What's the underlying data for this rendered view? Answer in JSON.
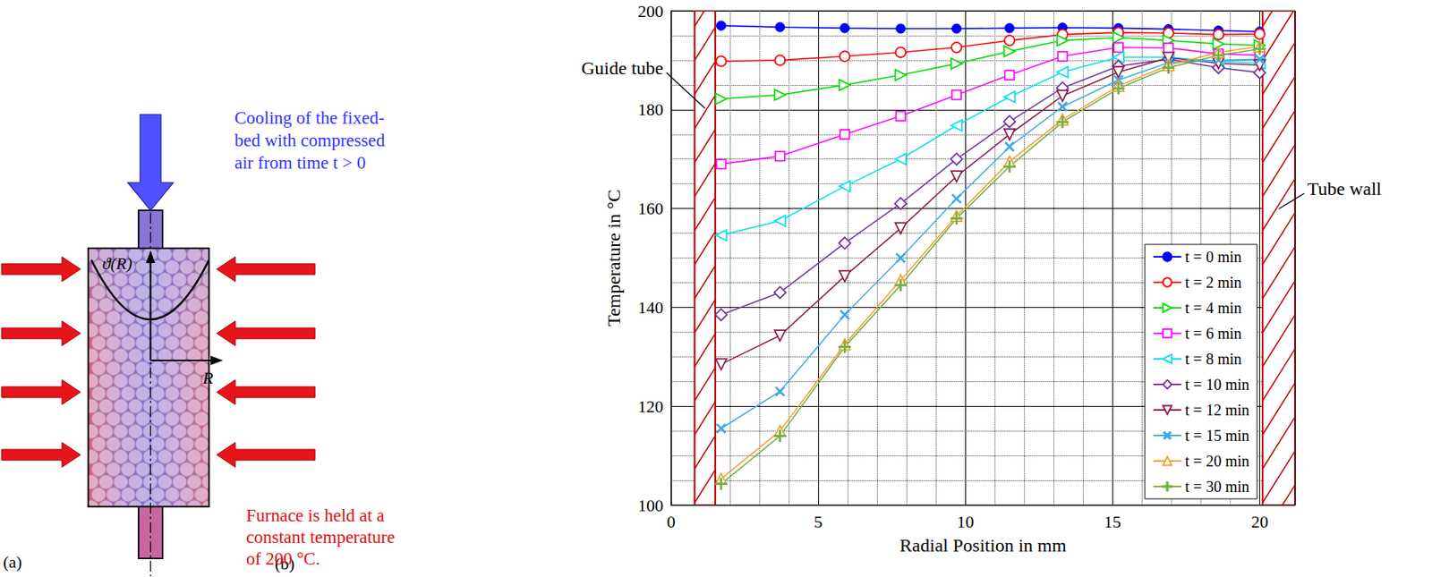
{
  "panel_a": {
    "label": "(a)",
    "top_text": "Cooling of the fixed-bed with compressed air from time t > 0",
    "bottom_text": "Furnace is held at a constant temperature of 200 °C.",
    "curve_label": "ϑ(R)",
    "axis_label": "R"
  },
  "chart_data": {
    "type": "line",
    "panel_label": "(b)",
    "x_label": "Radial Position in mm",
    "y_label": "Temperature in °C",
    "x": [
      1.7,
      3.7,
      5.9,
      7.8,
      9.7,
      11.5,
      13.3,
      15.2,
      16.9,
      18.6,
      20.0
    ],
    "xlim": [
      0,
      21.2
    ],
    "xticks": [
      0,
      5,
      10,
      15,
      20
    ],
    "ylim": [
      100,
      200
    ],
    "yticks": [
      100,
      120,
      140,
      160,
      180,
      200
    ],
    "grid": true,
    "legend": "lower right",
    "regions": [
      {
        "label": "Guide tube",
        "x_range": [
          0.8,
          1.5
        ]
      },
      {
        "label": "Tube wall",
        "x_range": [
          20.1,
          21.2
        ]
      }
    ],
    "series": [
      {
        "name": "t = 0 min",
        "color": "#0000ff",
        "marker": "filled-circle",
        "values": [
          197,
          196.7,
          196.5,
          196.4,
          196.4,
          196.5,
          196.6,
          196.5,
          196.3,
          196.0,
          195.8
        ]
      },
      {
        "name": "t = 2 min",
        "color": "#ff0000",
        "marker": "circle",
        "values": [
          189.8,
          190,
          190.8,
          191.6,
          192.6,
          194,
          195.2,
          195.6,
          195.5,
          195.2,
          195.3
        ]
      },
      {
        "name": "t = 4 min",
        "color": "#00dd00",
        "marker": "triangle-right",
        "values": [
          182.2,
          183,
          185,
          187,
          189.3,
          191.8,
          194,
          194.6,
          194,
          193.3,
          193
        ]
      },
      {
        "name": "t = 6 min",
        "color": "#ff00ff",
        "marker": "square",
        "values": [
          169,
          170.6,
          175,
          178.7,
          183,
          187,
          190.8,
          192.6,
          192.5,
          191.3,
          191
        ]
      },
      {
        "name": "t = 8 min",
        "color": "#00e0f0",
        "marker": "triangle-left",
        "values": [
          154.6,
          157.5,
          164.5,
          170,
          176.8,
          182.6,
          187.6,
          190.6,
          190.6,
          189.8,
          189.4
        ]
      },
      {
        "name": "t = 10 min",
        "color": "#7030a0",
        "marker": "diamond",
        "values": [
          138.5,
          143,
          153,
          161,
          170,
          177.6,
          184.4,
          188.8,
          190.2,
          188.5,
          187.5
        ]
      },
      {
        "name": "t = 12 min",
        "color": "#8b1a4a",
        "marker": "triangle-down",
        "values": [
          128.5,
          134.3,
          146.3,
          156,
          166.5,
          175,
          182.8,
          187.6,
          190.5,
          189.4,
          189
        ]
      },
      {
        "name": "t = 15 min",
        "color": "#40a8e8",
        "marker": "x",
        "values": [
          115.5,
          123,
          138.5,
          150,
          162,
          172.5,
          180.6,
          186,
          189.5,
          190,
          190.2
        ]
      },
      {
        "name": "t = 20 min",
        "color": "#f0a030",
        "marker": "triangle-up",
        "values": [
          105.3,
          115,
          132.5,
          145.5,
          158.5,
          169.5,
          178,
          184.8,
          189,
          191.6,
          192.8
        ]
      },
      {
        "name": "t = 30 min",
        "color": "#70b040",
        "marker": "plus",
        "values": [
          104.3,
          114,
          132,
          144.5,
          158,
          168.5,
          177.5,
          184.3,
          188.5,
          191,
          192.3
        ]
      }
    ]
  }
}
